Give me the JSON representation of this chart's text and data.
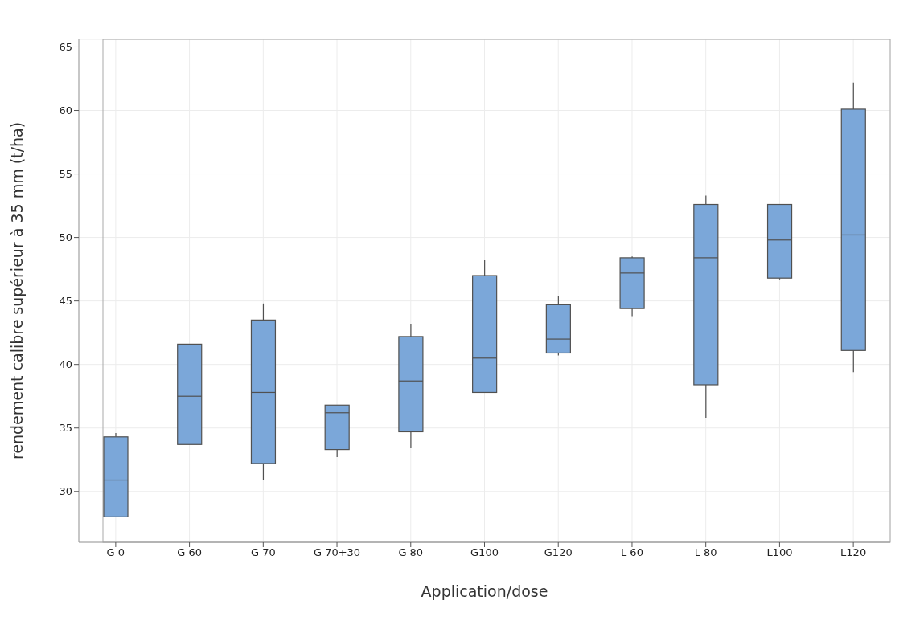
{
  "chart_data": {
    "type": "box",
    "xlabel": "Application/dose",
    "ylabel": "rendement calibre supérieur à 35 mm (t/ha)",
    "categories": [
      "G 0",
      "G 60",
      "G 70",
      "G 70+30",
      "G 80",
      "G100",
      "G120",
      "L 60",
      "L 80",
      "L100",
      "L120"
    ],
    "color": "#7ba7d9",
    "boxes": [
      {
        "low": 28.0,
        "q1": 28.0,
        "median": 30.9,
        "q3": 34.3,
        "high": 34.6
      },
      {
        "low": 33.7,
        "q1": 33.7,
        "median": 37.5,
        "q3": 41.6,
        "high": 41.6
      },
      {
        "low": 30.9,
        "q1": 32.2,
        "median": 37.8,
        "q3": 43.5,
        "high": 44.8
      },
      {
        "low": 32.7,
        "q1": 33.3,
        "median": 36.2,
        "q3": 36.8,
        "high": 36.8
      },
      {
        "low": 33.4,
        "q1": 34.7,
        "median": 38.7,
        "q3": 42.2,
        "high": 43.2
      },
      {
        "low": 37.8,
        "q1": 37.8,
        "median": 40.5,
        "q3": 47.0,
        "high": 48.2
      },
      {
        "low": 40.7,
        "q1": 40.9,
        "median": 42.0,
        "q3": 44.7,
        "high": 45.4
      },
      {
        "low": 43.8,
        "q1": 44.4,
        "median": 47.2,
        "q3": 48.4,
        "high": 48.5
      },
      {
        "low": 35.8,
        "q1": 38.4,
        "median": 48.4,
        "q3": 52.6,
        "high": 53.3
      },
      {
        "low": 46.7,
        "q1": 46.8,
        "median": 49.8,
        "q3": 52.6,
        "high": 52.6
      },
      {
        "low": 39.4,
        "q1": 41.1,
        "median": 50.2,
        "q3": 60.1,
        "high": 62.2
      }
    ],
    "ylim": [
      26,
      65.6
    ],
    "yticks": [
      30,
      35,
      40,
      45,
      50,
      55,
      60,
      65
    ],
    "grid": true
  }
}
